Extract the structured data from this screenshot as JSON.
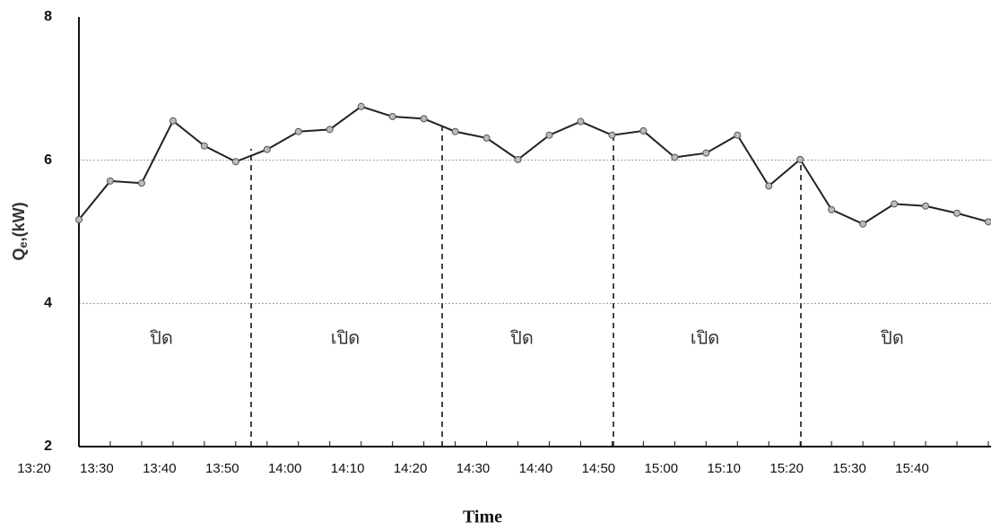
{
  "chart_data": {
    "type": "line",
    "y_label": {
      "main": "Q",
      "sub": "e",
      "unit": ",(kW)"
    },
    "x_label": "Time",
    "categories": [
      "13:20",
      null,
      "13:30",
      null,
      "13:40",
      null,
      "13:50",
      null,
      "14:00",
      null,
      "14:10",
      null,
      "14:20",
      null,
      "14:30",
      null,
      "14:40",
      null,
      "14:50",
      null,
      "15:00",
      null,
      "15:10",
      null,
      "15:20",
      null,
      "15:30",
      null,
      "15:40",
      null
    ],
    "series": [
      {
        "color": "#222222",
        "marker_color": "#bbbbbb",
        "values": [
          5.17,
          5.71,
          5.68,
          6.55,
          6.2,
          5.98,
          6.15,
          6.4,
          6.43,
          6.75,
          6.61,
          6.58,
          6.4,
          6.31,
          6.01,
          6.35,
          6.54,
          6.35,
          6.41,
          6.04,
          6.1,
          6.35,
          5.64,
          6.01,
          5.31,
          5.11,
          5.39,
          5.36,
          5.26,
          5.14
        ]
      }
    ],
    "ylim": [
      2,
      8
    ],
    "yticks": [
      2,
      4,
      6,
      8
    ],
    "grid": true,
    "annotations": [
      "ปิด",
      "เปิด",
      "ปิด",
      "เปิด",
      "ปิด"
    ]
  }
}
